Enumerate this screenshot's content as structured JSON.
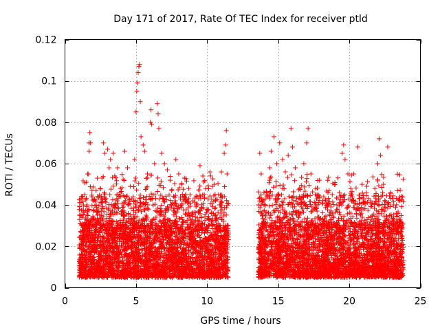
{
  "chart_data": {
    "type": "scatter",
    "title": "Day 171 of 2017, Rate Of TEC Index for receiver ptld",
    "xlabel": "GPS time / hours",
    "ylabel": "ROTI / TECUs",
    "xlim": [
      0,
      25
    ],
    "ylim": [
      0,
      0.12
    ],
    "x_ticks": [
      0,
      5,
      10,
      15,
      20,
      25
    ],
    "x_tick_labels": [
      "0",
      "5",
      "10",
      "15",
      "20",
      "25"
    ],
    "y_ticks": [
      0,
      0.02,
      0.04,
      0.06,
      0.08,
      0.1,
      0.12
    ],
    "y_tick_labels": [
      "0",
      "0.02",
      "0.04",
      "0.06",
      "0.08",
      "0.1",
      "0.12"
    ],
    "grid": true,
    "marker": "+",
    "color": "#ff0000",
    "series": [
      {
        "name": "ROTI",
        "segments": [
          {
            "x_start": 1.0,
            "x_end": 11.5
          },
          {
            "x_start": 13.6,
            "x_end": 23.8
          }
        ],
        "typical_range": [
          0.005,
          0.03
        ],
        "points": [
          [
            1.2,
            0.034
          ],
          [
            1.3,
            0.04
          ],
          [
            1.4,
            0.045
          ],
          [
            1.6,
            0.055
          ],
          [
            1.7,
            0.066
          ],
          [
            1.7,
            0.07
          ],
          [
            1.75,
            0.075
          ],
          [
            1.8,
            0.07
          ],
          [
            1.9,
            0.047
          ],
          [
            2.2,
            0.04
          ],
          [
            2.5,
            0.048
          ],
          [
            2.6,
            0.053
          ],
          [
            2.7,
            0.07
          ],
          [
            2.8,
            0.065
          ],
          [
            3.0,
            0.067
          ],
          [
            3.1,
            0.058
          ],
          [
            3.2,
            0.062
          ],
          [
            3.4,
            0.065
          ],
          [
            3.5,
            0.054
          ],
          [
            3.7,
            0.058
          ],
          [
            3.9,
            0.048
          ],
          [
            4.2,
            0.066
          ],
          [
            4.4,
            0.058
          ],
          [
            4.6,
            0.049
          ],
          [
            4.8,
            0.044
          ],
          [
            4.9,
            0.062
          ],
          [
            5.0,
            0.085
          ],
          [
            5.05,
            0.095
          ],
          [
            5.1,
            0.099
          ],
          [
            5.15,
            0.104
          ],
          [
            5.2,
            0.107
          ],
          [
            5.25,
            0.108
          ],
          [
            5.3,
            0.09
          ],
          [
            5.35,
            0.073
          ],
          [
            5.5,
            0.069
          ],
          [
            5.6,
            0.066
          ],
          [
            5.8,
            0.055
          ],
          [
            6.0,
            0.08
          ],
          [
            6.05,
            0.086
          ],
          [
            6.1,
            0.079
          ],
          [
            6.3,
            0.06
          ],
          [
            6.5,
            0.089
          ],
          [
            6.55,
            0.084
          ],
          [
            6.6,
            0.077
          ],
          [
            6.8,
            0.065
          ],
          [
            7.0,
            0.06
          ],
          [
            7.2,
            0.057
          ],
          [
            7.4,
            0.052
          ],
          [
            7.5,
            0.047
          ],
          [
            7.8,
            0.062
          ],
          [
            8.0,
            0.055
          ],
          [
            8.2,
            0.05
          ],
          [
            8.4,
            0.053
          ],
          [
            8.7,
            0.048
          ],
          [
            9.0,
            0.042
          ],
          [
            9.3,
            0.04
          ],
          [
            9.5,
            0.059
          ],
          [
            9.7,
            0.054
          ],
          [
            9.9,
            0.048
          ],
          [
            10.2,
            0.056
          ],
          [
            10.5,
            0.05
          ],
          [
            10.8,
            0.045
          ],
          [
            11.0,
            0.056
          ],
          [
            11.2,
            0.065
          ],
          [
            11.3,
            0.069
          ],
          [
            11.35,
            0.076
          ],
          [
            11.4,
            0.055
          ],
          [
            13.7,
            0.065
          ],
          [
            13.8,
            0.055
          ],
          [
            14.0,
            0.04
          ],
          [
            14.2,
            0.045
          ],
          [
            14.4,
            0.058
          ],
          [
            14.5,
            0.066
          ],
          [
            14.7,
            0.073
          ],
          [
            14.9,
            0.06
          ],
          [
            15.1,
            0.07
          ],
          [
            15.3,
            0.062
          ],
          [
            15.5,
            0.056
          ],
          [
            15.7,
            0.064
          ],
          [
            15.9,
            0.077
          ],
          [
            16.0,
            0.068
          ],
          [
            16.2,
            0.058
          ],
          [
            16.5,
            0.048
          ],
          [
            16.8,
            0.06
          ],
          [
            17.0,
            0.07
          ],
          [
            17.1,
            0.077
          ],
          [
            17.3,
            0.055
          ],
          [
            17.6,
            0.045
          ],
          [
            17.9,
            0.052
          ],
          [
            18.2,
            0.044
          ],
          [
            18.5,
            0.04
          ],
          [
            18.8,
            0.045
          ],
          [
            19.0,
            0.05
          ],
          [
            19.3,
            0.046
          ],
          [
            19.5,
            0.065
          ],
          [
            19.6,
            0.069
          ],
          [
            19.7,
            0.062
          ],
          [
            19.9,
            0.055
          ],
          [
            20.1,
            0.048
          ],
          [
            20.3,
            0.055
          ],
          [
            20.6,
            0.068
          ],
          [
            20.9,
            0.05
          ],
          [
            21.2,
            0.046
          ],
          [
            21.5,
            0.042
          ],
          [
            21.8,
            0.048
          ],
          [
            22.0,
            0.06
          ],
          [
            22.1,
            0.072
          ],
          [
            22.2,
            0.064
          ],
          [
            22.4,
            0.05
          ],
          [
            22.7,
            0.068
          ],
          [
            22.9,
            0.046
          ],
          [
            23.1,
            0.04
          ],
          [
            23.3,
            0.036
          ],
          [
            23.6,
            0.032
          ]
        ]
      }
    ]
  }
}
